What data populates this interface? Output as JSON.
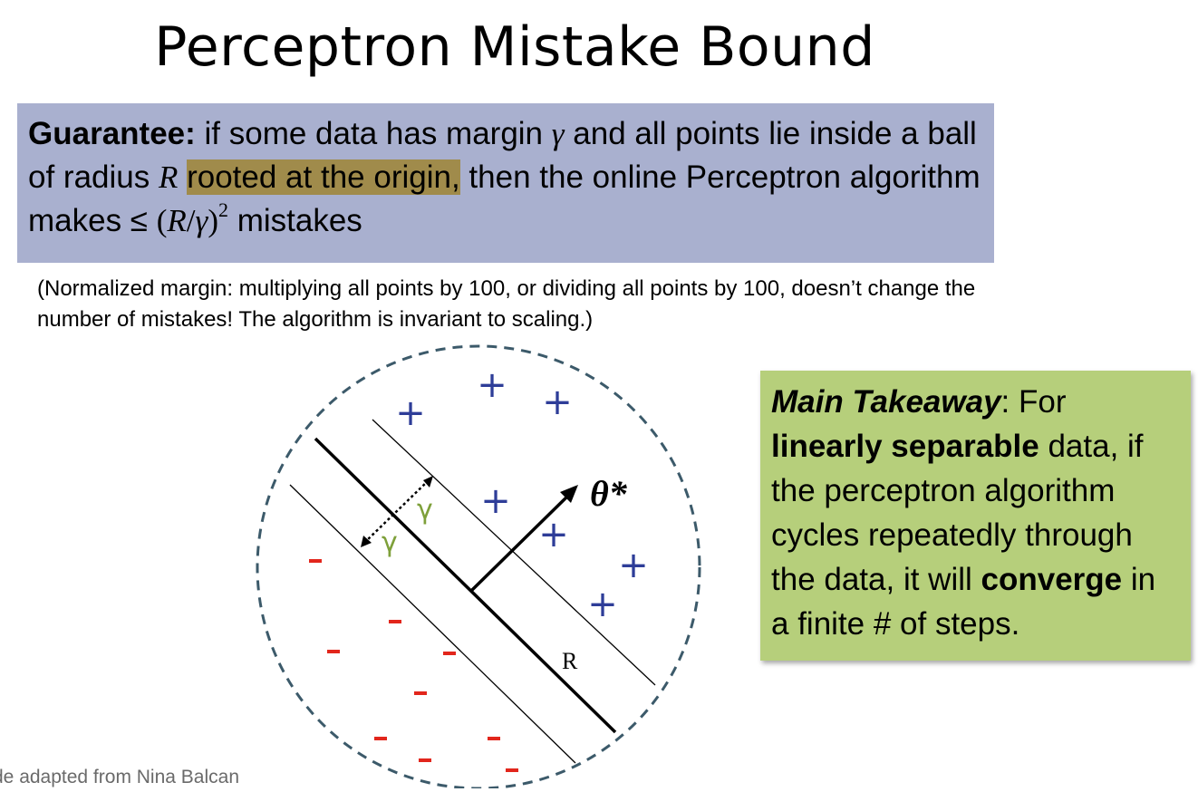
{
  "title": "Perceptron Mistake Bound",
  "guarantee": {
    "label": "Guarantee:",
    "part1": " if some data has margin ",
    "gamma": "γ",
    "part2": " and all points lie inside a ball of radius ",
    "radius_symbol": "R",
    "space": " ",
    "highlighted": "rooted at the origin,",
    "part3": " then the online Perceptron algorithm makes ≤ ",
    "bound_open": "(",
    "bound_R": "R",
    "bound_slash": "/",
    "bound_gamma": "γ",
    "bound_close": ")",
    "bound_exp": "2",
    "part4": " mistakes"
  },
  "note": "(Normalized margin: multiplying all points by 100, or dividing all points by 100, doesn’t change the number of mistakes! The algorithm is invariant to scaling.)",
  "takeaway": {
    "label": "Main Takeaway",
    "colon": ": For ",
    "bold1": "linearly separable",
    "mid1": " data, if the perceptron algorithm cycles repeatedly through the data, it will ",
    "bold2": "converge",
    "end": " in a finite # of steps."
  },
  "diagram": {
    "theta_label": "θ*",
    "radius_label": "R",
    "margin_label_1": "γ",
    "margin_label_2": "γ",
    "plus_symbol": "+",
    "minus_symbol": "-",
    "plus_color": "#2e3d98",
    "minus_color": "#e2261c",
    "margin_color": "#7ea03a",
    "circle_color": "#3c5a6a"
  },
  "credit": "de adapted from Nina Balcan",
  "colors": {
    "guarantee_bg": "#a9b0cf",
    "highlight_bg": "#a08b4b",
    "takeaway_bg": "#b6cf7b"
  }
}
